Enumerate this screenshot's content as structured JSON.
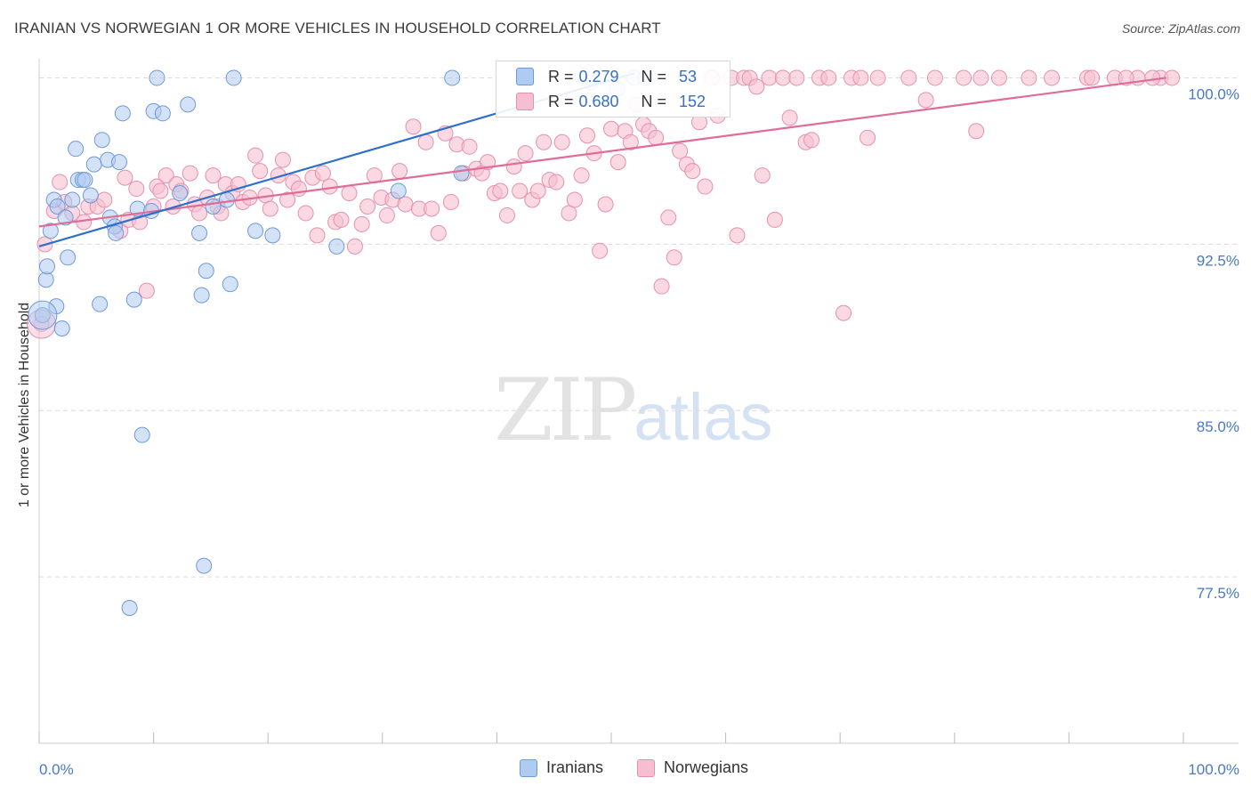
{
  "title": "IRANIAN VS NORWEGIAN 1 OR MORE VEHICLES IN HOUSEHOLD CORRELATION CHART",
  "source": "Source: ZipAtlas.com",
  "watermark": {
    "zip": "ZIP",
    "atlas": "atlas"
  },
  "legend": {
    "iranians": {
      "r_label": "R =",
      "r_value": "0.279",
      "n_label": "N =",
      "n_value": "53"
    },
    "norwegians": {
      "r_label": "R =",
      "r_value": "0.680",
      "n_label": "N =",
      "n_value": "152"
    }
  },
  "bottom_legend": {
    "iranians": "Iranians",
    "norwegians": "Norwegians"
  },
  "colors": {
    "iranians_fill": "#aecbf0",
    "iranians_stroke": "#6f9ad8",
    "iranians_line": "#2f6fcc",
    "norwegians_fill": "#f6bfd1",
    "norwegians_stroke": "#e690ae",
    "norwegians_line": "#e06c98",
    "tick_text": "#4a78c8"
  },
  "chart_data": {
    "type": "scatter",
    "title": "IRANIAN VS NORWEGIAN 1 OR MORE VEHICLES IN HOUSEHOLD CORRELATION CHART",
    "xlabel": "",
    "ylabel": "1 or more Vehicles in Household",
    "xlim": [
      0,
      100
    ],
    "ylim": [
      70.0,
      100.7
    ],
    "x_tick_labels": [
      "0.0%",
      "100.0%"
    ],
    "y_ticks": [
      77.5,
      85.0,
      92.5,
      100.0
    ],
    "y_tick_labels": [
      "77.5%",
      "85.0%",
      "92.5%",
      "100.0%"
    ],
    "grid": true,
    "legend_position": "top-center",
    "series": [
      {
        "name": "Iranians",
        "r": 0.279,
        "n": 53,
        "trend": {
          "x": [
            0,
            52
          ],
          "y": [
            92.4,
            100.2
          ]
        },
        "points": [
          [
            0.3,
            89.3
          ],
          [
            0.6,
            90.9
          ],
          [
            0.7,
            91.5
          ],
          [
            1.0,
            93.1
          ],
          [
            1.3,
            94.5
          ],
          [
            1.6,
            94.2
          ],
          [
            1.5,
            89.7
          ],
          [
            2.0,
            88.7
          ],
          [
            2.3,
            93.7
          ],
          [
            2.5,
            91.9
          ],
          [
            2.9,
            94.5
          ],
          [
            3.2,
            96.8
          ],
          [
            3.4,
            95.4
          ],
          [
            3.8,
            95.4
          ],
          [
            4.0,
            95.4
          ],
          [
            4.5,
            94.7
          ],
          [
            4.8,
            96.1
          ],
          [
            5.3,
            89.8
          ],
          [
            5.5,
            97.2
          ],
          [
            6.0,
            96.3
          ],
          [
            6.2,
            93.7
          ],
          [
            6.6,
            93.3
          ],
          [
            6.7,
            93.0
          ],
          [
            7.0,
            96.2
          ],
          [
            7.3,
            98.4
          ],
          [
            7.9,
            76.1
          ],
          [
            8.3,
            90.0
          ],
          [
            8.6,
            94.1
          ],
          [
            9.0,
            83.9
          ],
          [
            9.8,
            94.0
          ],
          [
            10.0,
            98.5
          ],
          [
            10.3,
            100.0
          ],
          [
            10.8,
            98.4
          ],
          [
            12.3,
            94.8
          ],
          [
            13.0,
            98.8
          ],
          [
            14.0,
            93.0
          ],
          [
            14.2,
            90.2
          ],
          [
            14.4,
            78.0
          ],
          [
            14.6,
            91.3
          ],
          [
            15.2,
            94.2
          ],
          [
            16.4,
            94.5
          ],
          [
            16.7,
            90.7
          ],
          [
            17.0,
            100.0
          ],
          [
            18.9,
            93.1
          ],
          [
            20.4,
            92.9
          ],
          [
            26.0,
            92.4
          ],
          [
            31.4,
            94.9
          ],
          [
            36.1,
            100.0
          ],
          [
            36.9,
            95.7
          ],
          [
            48.2,
            99.8
          ],
          [
            52.0,
            100.0
          ],
          [
            53.0,
            100.0
          ],
          [
            50.5,
            99.5
          ]
        ]
      },
      {
        "name": "Norwegians",
        "r": 0.68,
        "n": 152,
        "trend": {
          "x": [
            0,
            98.5
          ],
          "y": [
            93.3,
            100.0
          ]
        },
        "points": [
          [
            0.2,
            88.9
          ],
          [
            0.5,
            92.5
          ],
          [
            1.3,
            94.0
          ],
          [
            1.8,
            95.3
          ],
          [
            2.2,
            94.4
          ],
          [
            2.9,
            93.9
          ],
          [
            3.9,
            93.5
          ],
          [
            4.3,
            94.2
          ],
          [
            5.1,
            94.2
          ],
          [
            5.7,
            94.5
          ],
          [
            7.1,
            93.1
          ],
          [
            7.5,
            95.5
          ],
          [
            7.8,
            93.6
          ],
          [
            8.5,
            95.0
          ],
          [
            8.8,
            93.5
          ],
          [
            9.4,
            90.4
          ],
          [
            10.0,
            94.2
          ],
          [
            10.3,
            95.1
          ],
          [
            10.6,
            94.9
          ],
          [
            11.1,
            95.6
          ],
          [
            11.7,
            94.2
          ],
          [
            12.0,
            95.2
          ],
          [
            12.4,
            94.9
          ],
          [
            13.2,
            95.7
          ],
          [
            13.6,
            94.3
          ],
          [
            14.0,
            93.9
          ],
          [
            14.7,
            94.6
          ],
          [
            15.2,
            95.6
          ],
          [
            15.6,
            94.2
          ],
          [
            15.9,
            93.9
          ],
          [
            16.3,
            95.2
          ],
          [
            16.9,
            94.8
          ],
          [
            17.4,
            95.2
          ],
          [
            17.8,
            94.4
          ],
          [
            18.4,
            94.6
          ],
          [
            18.9,
            96.5
          ],
          [
            19.3,
            95.8
          ],
          [
            19.8,
            94.7
          ],
          [
            20.2,
            94.1
          ],
          [
            20.9,
            95.6
          ],
          [
            21.3,
            96.3
          ],
          [
            21.7,
            94.5
          ],
          [
            22.2,
            95.3
          ],
          [
            22.7,
            95.0
          ],
          [
            23.3,
            93.9
          ],
          [
            23.9,
            95.5
          ],
          [
            24.3,
            92.9
          ],
          [
            24.8,
            95.7
          ],
          [
            25.4,
            95.1
          ],
          [
            25.9,
            93.5
          ],
          [
            26.4,
            93.6
          ],
          [
            27.1,
            94.8
          ],
          [
            27.6,
            92.4
          ],
          [
            28.2,
            93.4
          ],
          [
            28.7,
            94.2
          ],
          [
            29.3,
            95.6
          ],
          [
            29.9,
            94.6
          ],
          [
            30.4,
            93.8
          ],
          [
            30.9,
            94.5
          ],
          [
            31.5,
            95.8
          ],
          [
            32.0,
            94.3
          ],
          [
            32.7,
            97.8
          ],
          [
            33.2,
            94.1
          ],
          [
            33.8,
            97.1
          ],
          [
            34.3,
            94.1
          ],
          [
            34.9,
            93.0
          ],
          [
            35.5,
            97.5
          ],
          [
            36.0,
            94.4
          ],
          [
            36.5,
            97.0
          ],
          [
            37.1,
            95.7
          ],
          [
            37.6,
            96.9
          ],
          [
            38.2,
            95.9
          ],
          [
            38.7,
            95.7
          ],
          [
            39.2,
            96.2
          ],
          [
            39.8,
            94.8
          ],
          [
            40.3,
            94.9
          ],
          [
            40.9,
            93.8
          ],
          [
            41.5,
            96.0
          ],
          [
            42.0,
            94.9
          ],
          [
            42.5,
            96.6
          ],
          [
            43.1,
            94.5
          ],
          [
            43.6,
            94.9
          ],
          [
            44.1,
            97.1
          ],
          [
            44.6,
            95.4
          ],
          [
            45.2,
            95.3
          ],
          [
            45.7,
            97.1
          ],
          [
            46.3,
            93.9
          ],
          [
            46.8,
            94.5
          ],
          [
            47.4,
            95.6
          ],
          [
            47.9,
            97.4
          ],
          [
            48.5,
            96.6
          ],
          [
            49.0,
            92.2
          ],
          [
            49.5,
            94.3
          ],
          [
            50.0,
            97.7
          ],
          [
            50.6,
            96.2
          ],
          [
            51.2,
            97.6
          ],
          [
            51.7,
            97.1
          ],
          [
            52.2,
            98.8
          ],
          [
            52.8,
            97.9
          ],
          [
            53.3,
            97.6
          ],
          [
            53.9,
            97.3
          ],
          [
            54.4,
            90.6
          ],
          [
            55.0,
            93.7
          ],
          [
            55.5,
            91.9
          ],
          [
            56.0,
            96.7
          ],
          [
            56.6,
            96.1
          ],
          [
            57.1,
            95.8
          ],
          [
            57.7,
            98.0
          ],
          [
            58.2,
            95.1
          ],
          [
            58.8,
            100.0
          ],
          [
            59.3,
            98.3
          ],
          [
            60.5,
            100.0
          ],
          [
            61.0,
            92.9
          ],
          [
            61.6,
            100.0
          ],
          [
            62.1,
            100.0
          ],
          [
            62.7,
            99.6
          ],
          [
            63.2,
            95.6
          ],
          [
            63.8,
            100.0
          ],
          [
            64.3,
            93.6
          ],
          [
            65.0,
            100.0
          ],
          [
            65.6,
            98.2
          ],
          [
            66.2,
            100.0
          ],
          [
            67.0,
            97.1
          ],
          [
            67.5,
            97.2
          ],
          [
            68.2,
            100.0
          ],
          [
            69.0,
            100.0
          ],
          [
            70.3,
            89.4
          ],
          [
            71.0,
            100.0
          ],
          [
            71.8,
            100.0
          ],
          [
            72.4,
            97.3
          ],
          [
            73.3,
            100.0
          ],
          [
            76.0,
            100.0
          ],
          [
            77.5,
            99.0
          ],
          [
            78.3,
            100.0
          ],
          [
            80.8,
            100.0
          ],
          [
            81.9,
            97.6
          ],
          [
            82.3,
            100.0
          ],
          [
            83.9,
            100.0
          ],
          [
            86.5,
            100.0
          ],
          [
            88.5,
            100.0
          ],
          [
            91.6,
            100.0
          ],
          [
            94.0,
            100.0
          ],
          [
            96.0,
            100.0
          ],
          [
            98.0,
            100.0
          ],
          [
            97.3,
            100.0
          ],
          [
            99.0,
            100.0
          ],
          [
            95.0,
            100.0
          ],
          [
            92.0,
            100.0
          ]
        ]
      }
    ]
  }
}
